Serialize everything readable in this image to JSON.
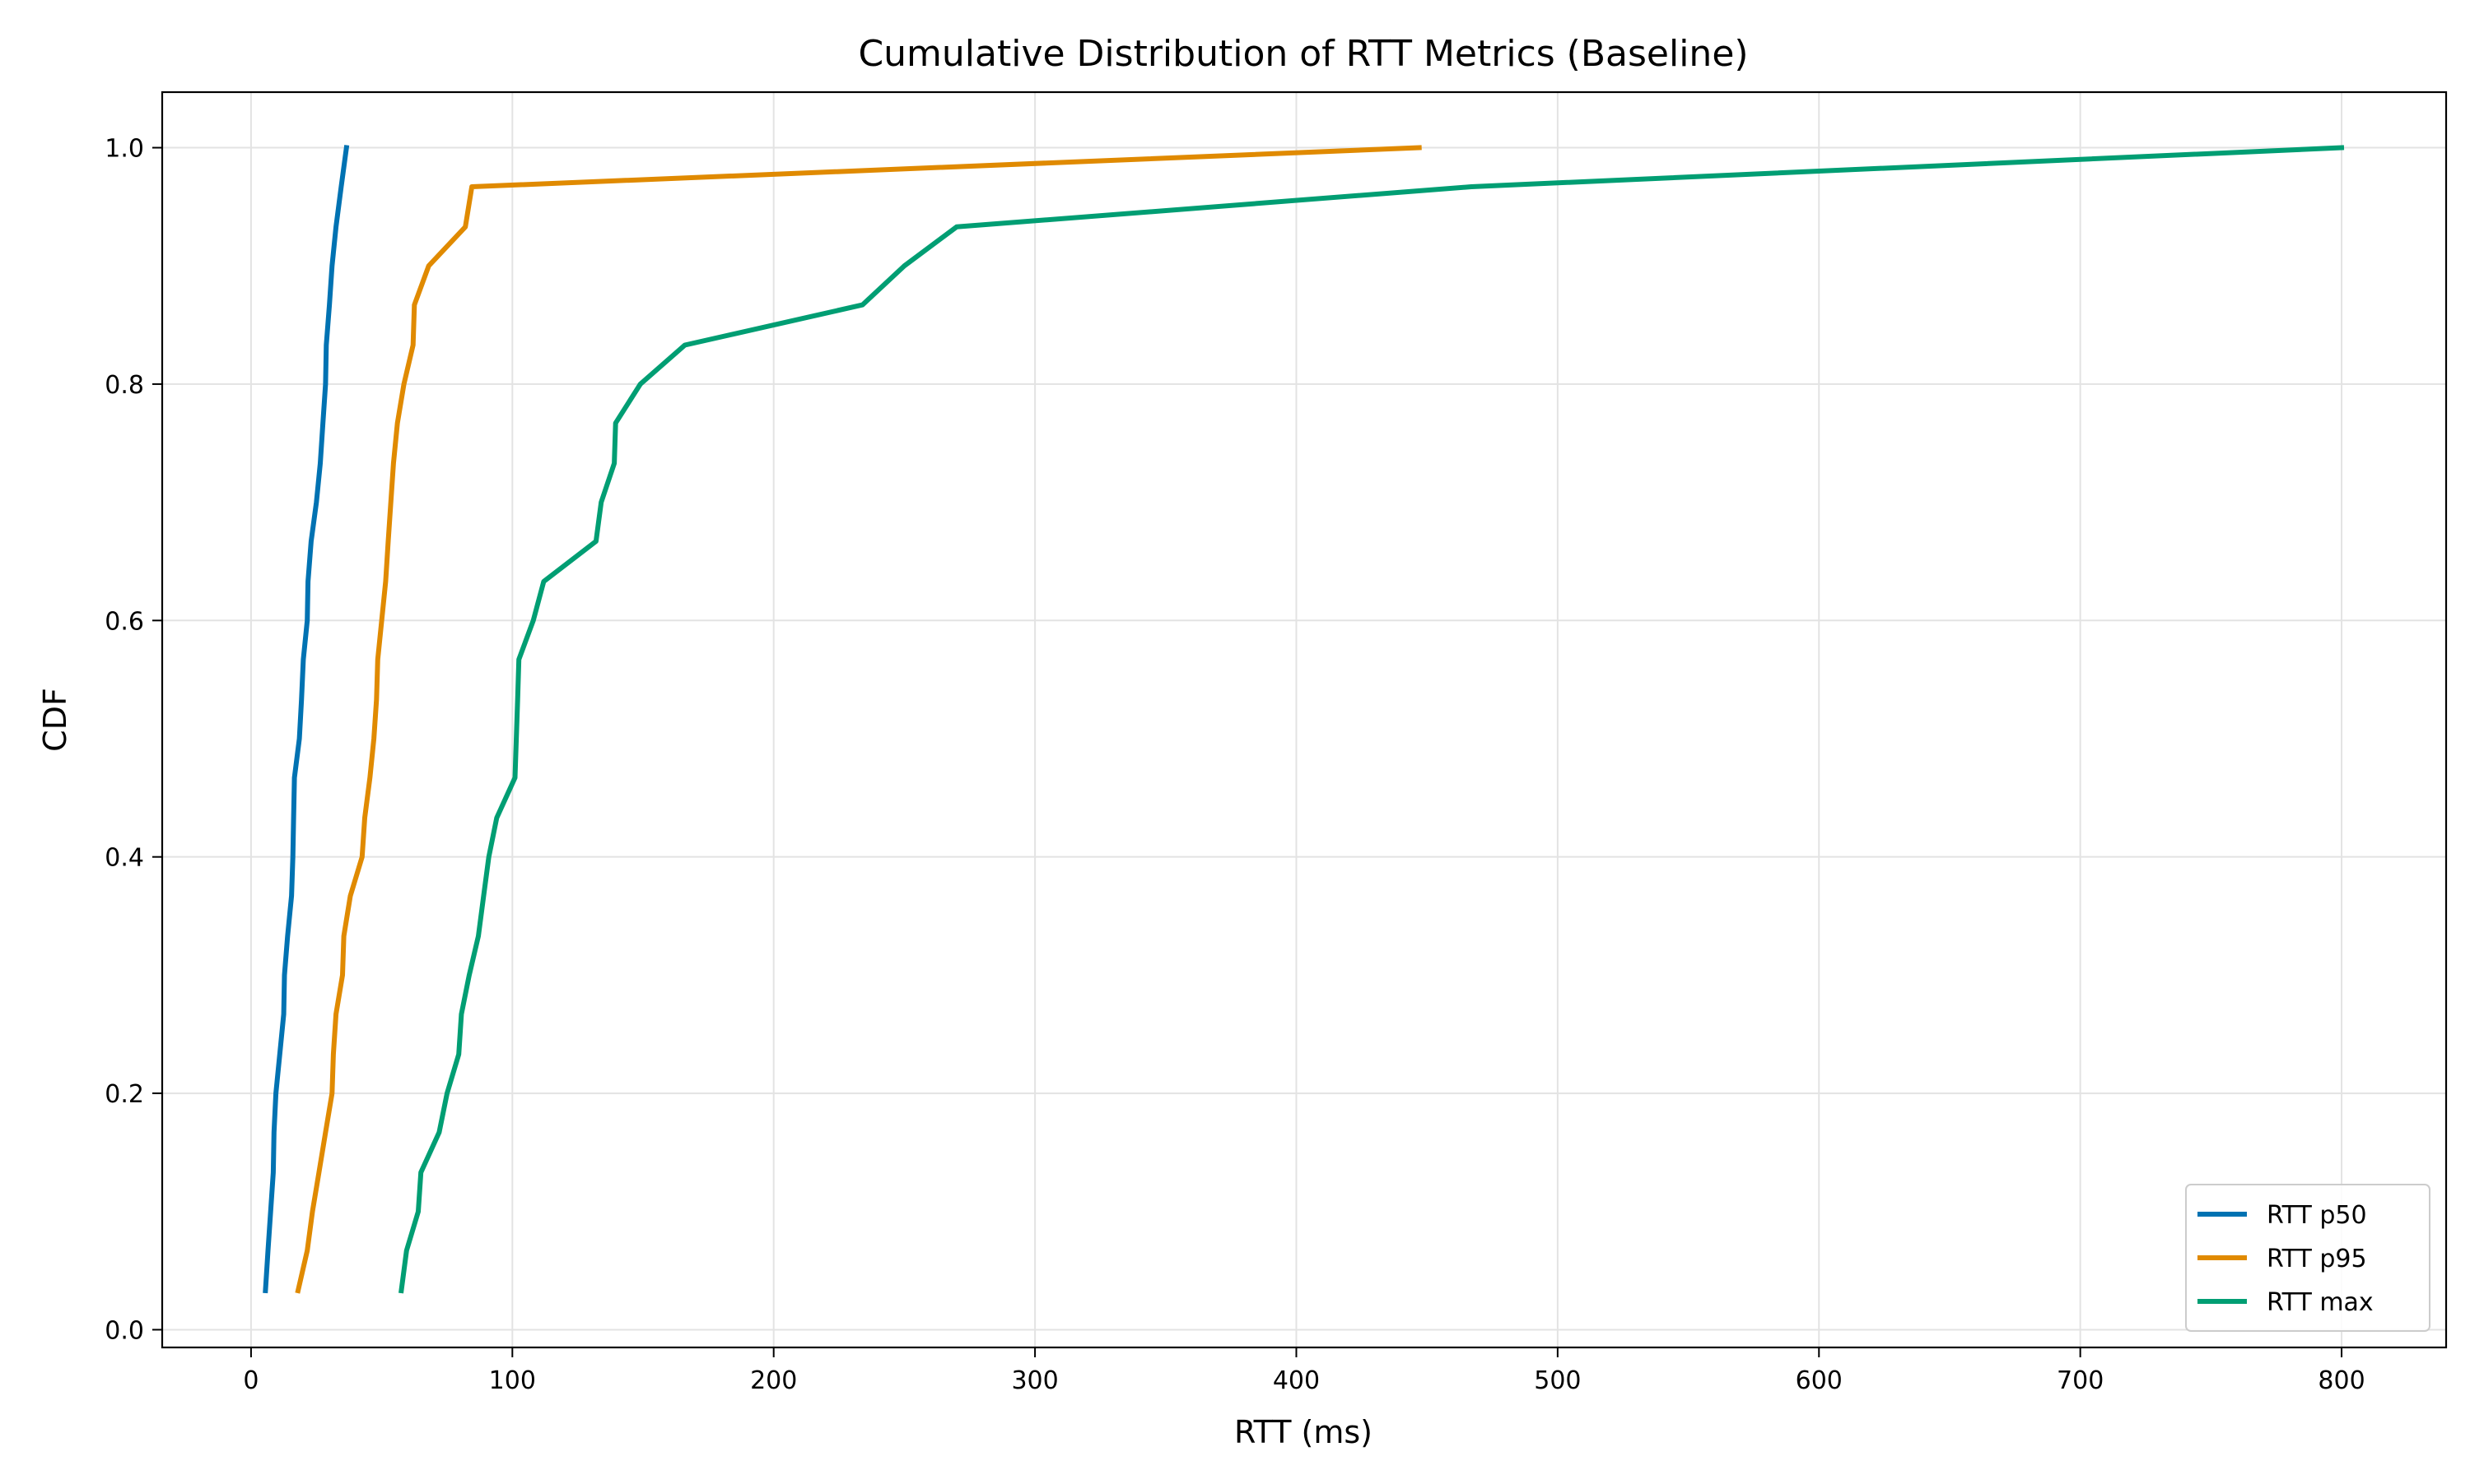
{
  "chart_data": {
    "type": "line",
    "title": "Cumulative Distribution of RTT Metrics (Baseline)",
    "xlabel": "RTT (ms)",
    "ylabel": "CDF",
    "xlim": [
      -34,
      840
    ],
    "ylim": [
      -0.015,
      1.047
    ],
    "xticks": [
      0,
      100,
      200,
      300,
      400,
      500,
      600,
      700,
      800
    ],
    "yticks": [
      0.0,
      0.2,
      0.4,
      0.6,
      0.8,
      1.0
    ],
    "xtick_labels": [
      "0",
      "100",
      "200",
      "300",
      "400",
      "500",
      "600",
      "700",
      "800"
    ],
    "ytick_labels": [
      "0.0",
      "0.2",
      "0.4",
      "0.6",
      "0.8",
      "1.0"
    ],
    "grid": true,
    "legend_position": "bottom-right",
    "series": [
      {
        "name": "RTT p50",
        "color": "#0072b2",
        "points": [
          [
            5.5,
            0.033
          ],
          [
            6.5,
            0.067
          ],
          [
            7.5,
            0.1
          ],
          [
            8.5,
            0.133
          ],
          [
            8.8,
            0.167
          ],
          [
            9.5,
            0.2
          ],
          [
            11,
            0.233
          ],
          [
            12.5,
            0.267
          ],
          [
            12.8,
            0.3
          ],
          [
            14,
            0.333
          ],
          [
            15.5,
            0.367
          ],
          [
            16,
            0.4
          ],
          [
            16.3,
            0.433
          ],
          [
            16.6,
            0.467
          ],
          [
            18.5,
            0.5
          ],
          [
            19.3,
            0.533
          ],
          [
            20,
            0.567
          ],
          [
            21.5,
            0.6
          ],
          [
            21.8,
            0.633
          ],
          [
            23,
            0.667
          ],
          [
            25,
            0.7
          ],
          [
            26.5,
            0.733
          ],
          [
            27.5,
            0.767
          ],
          [
            28.5,
            0.8
          ],
          [
            28.8,
            0.833
          ],
          [
            30,
            0.867
          ],
          [
            31,
            0.9
          ],
          [
            32.5,
            0.933
          ],
          [
            34.5,
            0.967
          ],
          [
            36.5,
            1.0
          ]
        ]
      },
      {
        "name": "RTT p95",
        "color": "#e08a00",
        "points": [
          [
            18,
            0.033
          ],
          [
            21.5,
            0.067
          ],
          [
            23.5,
            0.1
          ],
          [
            26,
            0.133
          ],
          [
            28.5,
            0.167
          ],
          [
            31,
            0.2
          ],
          [
            31.5,
            0.233
          ],
          [
            32.5,
            0.267
          ],
          [
            35,
            0.3
          ],
          [
            35.5,
            0.333
          ],
          [
            38,
            0.367
          ],
          [
            42.5,
            0.4
          ],
          [
            43.5,
            0.433
          ],
          [
            45.5,
            0.467
          ],
          [
            47,
            0.5
          ],
          [
            48,
            0.533
          ],
          [
            48.5,
            0.567
          ],
          [
            50,
            0.6
          ],
          [
            51.5,
            0.633
          ],
          [
            52.5,
            0.667
          ],
          [
            53.5,
            0.7
          ],
          [
            54.5,
            0.733
          ],
          [
            56,
            0.767
          ],
          [
            58.5,
            0.8
          ],
          [
            62,
            0.833
          ],
          [
            62.5,
            0.867
          ],
          [
            68,
            0.9
          ],
          [
            82,
            0.933
          ],
          [
            84.5,
            0.967
          ],
          [
            447,
            1.0
          ]
        ]
      },
      {
        "name": "RTT max",
        "color": "#009e73",
        "points": [
          [
            57.5,
            0.033
          ],
          [
            59.5,
            0.067
          ],
          [
            64,
            0.1
          ],
          [
            65,
            0.133
          ],
          [
            72,
            0.167
          ],
          [
            75,
            0.2
          ],
          [
            79.5,
            0.233
          ],
          [
            80.5,
            0.267
          ],
          [
            83.5,
            0.3
          ],
          [
            87,
            0.333
          ],
          [
            89,
            0.367
          ],
          [
            91,
            0.4
          ],
          [
            94,
            0.433
          ],
          [
            101,
            0.467
          ],
          [
            101.5,
            0.5
          ],
          [
            102,
            0.533
          ],
          [
            102.5,
            0.567
          ],
          [
            108,
            0.6
          ],
          [
            112,
            0.633
          ],
          [
            132,
            0.667
          ],
          [
            134,
            0.7
          ],
          [
            139,
            0.733
          ],
          [
            139.5,
            0.767
          ],
          [
            149,
            0.8
          ],
          [
            166,
            0.833
          ],
          [
            234,
            0.867
          ],
          [
            250,
            0.9
          ],
          [
            270,
            0.933
          ],
          [
            467,
            0.967
          ],
          [
            800,
            1.0
          ]
        ]
      }
    ]
  }
}
